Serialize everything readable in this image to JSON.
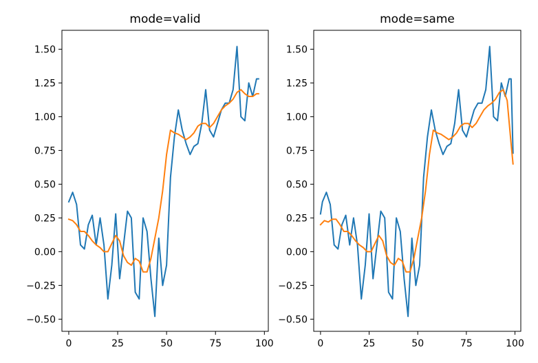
{
  "chart_data": [
    {
      "type": "line",
      "title": "mode=valid",
      "xlabel": "",
      "ylabel": "",
      "xlim": [
        -3.5,
        102
      ],
      "ylim": [
        -0.59,
        1.64
      ],
      "xticks": [
        0,
        25,
        50,
        75,
        100
      ],
      "xtick_labels": [
        "0",
        "25",
        "50",
        "75",
        "100"
      ],
      "yticks": [
        -0.5,
        -0.25,
        0.0,
        0.25,
        0.5,
        0.75,
        1.0,
        1.25,
        1.5
      ],
      "ytick_labels": [
        "−0.50",
        "−0.25",
        "0.00",
        "0.25",
        "0.50",
        "0.75",
        "1.00",
        "1.25",
        "1.50"
      ],
      "grid": false,
      "legend": "none",
      "series": [
        {
          "color": "#1f77b4",
          "x": [
            0,
            2,
            4,
            6,
            8,
            10,
            12,
            14,
            16,
            18,
            20,
            22,
            24,
            26,
            28,
            30,
            32,
            34,
            36,
            38,
            40,
            42,
            44,
            46,
            48,
            50,
            52,
            54,
            56,
            58,
            60,
            62,
            64,
            66,
            68,
            70,
            72,
            74,
            76,
            78,
            80,
            82,
            84,
            86,
            88,
            90,
            92,
            94,
            96,
            97
          ],
          "y": [
            0.37,
            0.44,
            0.35,
            0.05,
            0.02,
            0.2,
            0.27,
            0.05,
            0.25,
            0.05,
            -0.35,
            -0.1,
            0.28,
            -0.2,
            0.05,
            0.3,
            0.25,
            -0.3,
            -0.35,
            0.25,
            0.15,
            -0.2,
            -0.48,
            0.1,
            -0.25,
            -0.1,
            0.55,
            0.85,
            1.05,
            0.9,
            0.8,
            0.72,
            0.78,
            0.8,
            0.95,
            1.2,
            0.9,
            0.85,
            0.95,
            1.05,
            1.1,
            1.1,
            1.2,
            1.52,
            1.0,
            0.97,
            1.25,
            1.15,
            1.28,
            1.28
          ]
        },
        {
          "color": "#ff7f0e",
          "x": [
            0,
            2,
            4,
            6,
            8,
            10,
            12,
            14,
            16,
            18,
            20,
            22,
            24,
            26,
            28,
            30,
            32,
            34,
            36,
            38,
            40,
            42,
            44,
            46,
            48,
            50,
            52,
            54,
            56,
            58,
            60,
            62,
            64,
            66,
            68,
            70,
            72,
            74,
            76,
            78,
            80,
            82,
            84,
            86,
            88,
            90,
            92,
            94,
            96,
            97
          ],
          "y": [
            0.24,
            0.23,
            0.2,
            0.15,
            0.15,
            0.12,
            0.08,
            0.05,
            0.03,
            0.0,
            0.0,
            0.06,
            0.12,
            0.08,
            -0.03,
            -0.08,
            -0.1,
            -0.05,
            -0.07,
            -0.15,
            -0.15,
            -0.05,
            0.1,
            0.25,
            0.45,
            0.72,
            0.9,
            0.88,
            0.87,
            0.85,
            0.83,
            0.85,
            0.88,
            0.93,
            0.95,
            0.95,
            0.92,
            0.95,
            1.0,
            1.05,
            1.08,
            1.1,
            1.13,
            1.18,
            1.2,
            1.17,
            1.15,
            1.15,
            1.17,
            1.17
          ]
        }
      ]
    },
    {
      "type": "line",
      "title": "mode=same",
      "xlabel": "",
      "ylabel": "",
      "xlim": [
        -3.5,
        103
      ],
      "ylim": [
        -0.59,
        1.64
      ],
      "xticks": [
        0,
        25,
        50,
        75,
        100
      ],
      "xtick_labels": [
        "0",
        "25",
        "50",
        "75",
        "100"
      ],
      "yticks": [
        -0.5,
        -0.25,
        0.0,
        0.25,
        0.5,
        0.75,
        1.0,
        1.25,
        1.5
      ],
      "ytick_labels": [
        "−0.50",
        "−0.25",
        "0.00",
        "0.25",
        "0.50",
        "0.75",
        "1.00",
        "1.25",
        "1.50"
      ],
      "grid": false,
      "legend": "none",
      "series": [
        {
          "color": "#1f77b4",
          "x": [
            0,
            1,
            3,
            5,
            7,
            9,
            11,
            13,
            15,
            17,
            19,
            21,
            23,
            25,
            27,
            29,
            31,
            33,
            35,
            37,
            39,
            41,
            43,
            45,
            47,
            49,
            51,
            53,
            55,
            57,
            59,
            61,
            63,
            65,
            67,
            69,
            71,
            73,
            75,
            77,
            79,
            81,
            83,
            85,
            87,
            89,
            91,
            93,
            95,
            97,
            98,
            99
          ],
          "y": [
            0.28,
            0.37,
            0.44,
            0.35,
            0.05,
            0.02,
            0.2,
            0.27,
            0.05,
            0.25,
            0.05,
            -0.35,
            -0.1,
            0.28,
            -0.2,
            0.05,
            0.3,
            0.25,
            -0.3,
            -0.35,
            0.25,
            0.15,
            -0.2,
            -0.48,
            0.1,
            -0.25,
            -0.1,
            0.55,
            0.85,
            1.05,
            0.9,
            0.8,
            0.72,
            0.78,
            0.8,
            0.95,
            1.2,
            0.9,
            0.85,
            0.95,
            1.05,
            1.1,
            1.1,
            1.2,
            1.52,
            1.0,
            0.97,
            1.25,
            1.15,
            1.28,
            1.28,
            0.73
          ]
        },
        {
          "color": "#ff7f0e",
          "x": [
            0,
            2,
            4,
            6,
            8,
            10,
            12,
            14,
            16,
            18,
            20,
            22,
            24,
            26,
            28,
            30,
            32,
            34,
            36,
            38,
            40,
            42,
            44,
            46,
            48,
            50,
            52,
            54,
            56,
            58,
            60,
            62,
            64,
            66,
            68,
            70,
            72,
            74,
            76,
            78,
            80,
            82,
            84,
            86,
            88,
            90,
            92,
            94,
            96,
            98,
            99
          ],
          "y": [
            0.2,
            0.23,
            0.22,
            0.24,
            0.24,
            0.2,
            0.15,
            0.15,
            0.12,
            0.08,
            0.05,
            0.03,
            0.0,
            0.0,
            0.06,
            0.12,
            0.08,
            -0.03,
            -0.08,
            -0.1,
            -0.05,
            -0.07,
            -0.15,
            -0.15,
            -0.05,
            0.1,
            0.25,
            0.45,
            0.72,
            0.9,
            0.88,
            0.87,
            0.85,
            0.83,
            0.85,
            0.88,
            0.93,
            0.95,
            0.95,
            0.92,
            0.95,
            1.0,
            1.05,
            1.08,
            1.1,
            1.13,
            1.18,
            1.2,
            1.12,
            0.8,
            0.65
          ]
        }
      ]
    }
  ]
}
